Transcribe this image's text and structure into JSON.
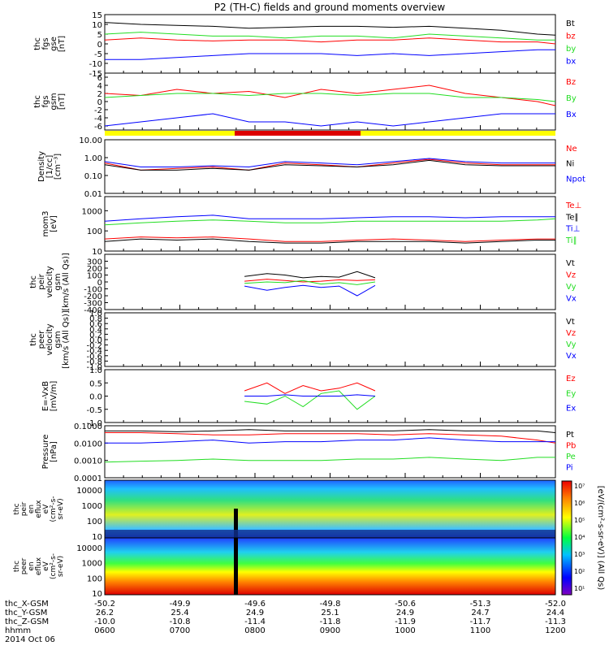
{
  "title": "P2 (TH-C) fields and ground moments overview",
  "colors": {
    "black": "#000000",
    "red": "#ff0000",
    "green": "#22dd22",
    "blue": "#0000ff",
    "bar_yellow": "#ffff00",
    "bar_red": "#dd0000"
  },
  "chart_data": [
    {
      "type": "line",
      "id": "fgs_gse",
      "ylabel": [
        "thc",
        "fgs",
        "gse",
        "[nT]"
      ],
      "ylim": [
        -15,
        15
      ],
      "yticks": [
        "15",
        "10",
        "5",
        "0",
        "-5",
        "-10",
        "-15"
      ],
      "series": [
        {
          "name": "Bt",
          "color": "black",
          "x": [
            0,
            0.08,
            0.16,
            0.24,
            0.32,
            0.4,
            0.48,
            0.56,
            0.64,
            0.72,
            0.8,
            0.88,
            0.96,
            1
          ],
          "y": [
            11,
            10,
            9.5,
            9,
            8,
            8.5,
            9,
            9,
            8.5,
            9,
            8,
            7,
            5,
            4.5
          ]
        },
        {
          "name": "bz",
          "color": "red",
          "x": [
            0,
            0.08,
            0.16,
            0.24,
            0.32,
            0.4,
            0.48,
            0.56,
            0.64,
            0.72,
            0.8,
            0.88,
            0.96,
            1
          ],
          "y": [
            2,
            3,
            2,
            1.5,
            2,
            2,
            1,
            2,
            2,
            3,
            2,
            1,
            1,
            0
          ]
        },
        {
          "name": "by",
          "color": "green",
          "x": [
            0,
            0.08,
            0.16,
            0.24,
            0.32,
            0.4,
            0.48,
            0.56,
            0.64,
            0.72,
            0.8,
            0.88,
            0.96,
            1
          ],
          "y": [
            5,
            6,
            5,
            4,
            4,
            3,
            4,
            4,
            3,
            5,
            4,
            3,
            2,
            2
          ]
        },
        {
          "name": "bx",
          "color": "blue",
          "x": [
            0,
            0.08,
            0.16,
            0.24,
            0.32,
            0.4,
            0.48,
            0.56,
            0.64,
            0.72,
            0.8,
            0.88,
            0.96,
            1
          ],
          "y": [
            -8,
            -8,
            -7,
            -6,
            -5,
            -5,
            -5,
            -6,
            -5,
            -6,
            -5,
            -4,
            -3,
            -3
          ]
        }
      ]
    },
    {
      "type": "line",
      "id": "fgs_gsm",
      "ylabel": [
        "thc",
        "fgs",
        "gsm",
        "[nT]"
      ],
      "ylim": [
        -7,
        7
      ],
      "yticks": [
        "6",
        "4",
        "2",
        "0",
        "-2",
        "-4",
        "-6"
      ],
      "series": [
        {
          "name": "Bz",
          "color": "red",
          "x": [
            0,
            0.08,
            0.16,
            0.24,
            0.32,
            0.4,
            0.48,
            0.56,
            0.64,
            0.72,
            0.8,
            0.88,
            0.96,
            1
          ],
          "y": [
            2,
            1.5,
            3,
            2,
            2.5,
            1,
            3,
            2,
            3,
            4,
            2,
            1,
            0,
            -1
          ]
        },
        {
          "name": "By",
          "color": "green",
          "x": [
            0,
            0.08,
            0.16,
            0.24,
            0.32,
            0.4,
            0.48,
            0.56,
            0.64,
            0.72,
            0.8,
            0.88,
            0.96,
            1
          ],
          "y": [
            1,
            1.5,
            2,
            2,
            1.5,
            2,
            2,
            1.5,
            2,
            2,
            1,
            1,
            0.5,
            0
          ]
        },
        {
          "name": "Bx",
          "color": "blue",
          "x": [
            0,
            0.08,
            0.16,
            0.24,
            0.32,
            0.4,
            0.48,
            0.56,
            0.64,
            0.72,
            0.8,
            0.88,
            0.96,
            1
          ],
          "y": [
            -6,
            -5,
            -4,
            -3,
            -5,
            -5,
            -6,
            -5,
            -6,
            -5,
            -4,
            -3,
            -3,
            -3
          ]
        }
      ]
    },
    {
      "type": "line",
      "id": "density",
      "log": true,
      "ylabel": [
        "Density",
        "[1/cc]",
        "[cm⁻³]"
      ],
      "ylim": [
        0.01,
        10
      ],
      "yticks": [
        "10.00",
        "1.00",
        "0.10",
        "0.01"
      ],
      "series": [
        {
          "name": "Ne",
          "color": "red",
          "x": [
            0,
            0.08,
            0.16,
            0.24,
            0.32,
            0.4,
            0.48,
            0.56,
            0.64,
            0.72,
            0.8,
            0.88,
            0.96,
            1
          ],
          "y": [
            0.5,
            0.2,
            0.25,
            0.3,
            0.2,
            0.5,
            0.4,
            0.3,
            0.5,
            0.8,
            0.5,
            0.4,
            0.4,
            0.4
          ]
        },
        {
          "name": "Ni",
          "color": "black",
          "x": [
            0,
            0.08,
            0.16,
            0.24,
            0.32,
            0.4,
            0.48,
            0.56,
            0.64,
            0.72,
            0.8,
            0.88,
            0.96,
            1
          ],
          "y": [
            0.4,
            0.2,
            0.2,
            0.25,
            0.2,
            0.4,
            0.35,
            0.3,
            0.4,
            0.7,
            0.4,
            0.35,
            0.35,
            0.35
          ]
        },
        {
          "name": "Npot",
          "color": "blue",
          "x": [
            0,
            0.08,
            0.16,
            0.24,
            0.32,
            0.4,
            0.48,
            0.56,
            0.64,
            0.72,
            0.8,
            0.88,
            0.96,
            1
          ],
          "y": [
            0.6,
            0.3,
            0.3,
            0.35,
            0.3,
            0.6,
            0.5,
            0.4,
            0.6,
            0.9,
            0.6,
            0.5,
            0.5,
            0.5
          ]
        }
      ]
    },
    {
      "type": "line",
      "id": "temperature",
      "log": true,
      "ylabel": [
        "mom3",
        "[eV]"
      ],
      "ylim": [
        10,
        5000
      ],
      "yticks": [
        "1000",
        "100",
        "10"
      ],
      "series": [
        {
          "name": "Te⊥",
          "color": "red",
          "x": [
            0,
            0.08,
            0.16,
            0.24,
            0.32,
            0.4,
            0.48,
            0.56,
            0.64,
            0.72,
            0.8,
            0.88,
            0.96,
            1
          ],
          "y": [
            40,
            50,
            45,
            50,
            40,
            30,
            30,
            35,
            40,
            35,
            30,
            35,
            40,
            40
          ]
        },
        {
          "name": "Te∥",
          "color": "black",
          "x": [
            0,
            0.08,
            0.16,
            0.24,
            0.32,
            0.4,
            0.48,
            0.56,
            0.64,
            0.72,
            0.8,
            0.88,
            0.96,
            1
          ],
          "y": [
            30,
            40,
            35,
            40,
            30,
            25,
            25,
            30,
            30,
            30,
            25,
            30,
            35,
            35
          ]
        },
        {
          "name": "Ti⊥",
          "color": "blue",
          "x": [
            0,
            0.08,
            0.16,
            0.24,
            0.32,
            0.4,
            0.48,
            0.56,
            0.64,
            0.72,
            0.8,
            0.88,
            0.96,
            1
          ],
          "y": [
            300,
            400,
            500,
            600,
            400,
            400,
            400,
            450,
            500,
            500,
            450,
            500,
            500,
            500
          ]
        },
        {
          "name": "Ti∥",
          "color": "green",
          "x": [
            0,
            0.08,
            0.16,
            0.24,
            0.32,
            0.4,
            0.48,
            0.56,
            0.64,
            0.72,
            0.8,
            0.88,
            0.96,
            1
          ],
          "y": [
            200,
            250,
            300,
            350,
            300,
            250,
            250,
            300,
            300,
            300,
            300,
            300,
            350,
            400
          ]
        }
      ]
    },
    {
      "type": "line",
      "id": "peir_velocity",
      "ylabel": [
        "thc",
        "peir",
        "velocity",
        "gsm",
        "[km/s (All Qs)]"
      ],
      "ylim": [
        -400,
        400
      ],
      "yticks": [
        "300",
        "200",
        "100",
        "0",
        "-100",
        "-200",
        "-300",
        "-400"
      ],
      "series": [
        {
          "name": "Vt",
          "color": "black",
          "x": [
            0.31,
            0.36,
            0.4,
            0.44,
            0.48,
            0.52,
            0.56,
            0.6
          ],
          "y": [
            80,
            120,
            100,
            60,
            80,
            70,
            150,
            60
          ]
        },
        {
          "name": "Vz",
          "color": "red",
          "x": [
            0.31,
            0.36,
            0.4,
            0.44,
            0.48,
            0.52,
            0.56,
            0.6
          ],
          "y": [
            10,
            40,
            20,
            0,
            10,
            30,
            20,
            30
          ]
        },
        {
          "name": "Vy",
          "color": "green",
          "x": [
            0.31,
            0.36,
            0.4,
            0.44,
            0.48,
            0.52,
            0.56,
            0.6
          ],
          "y": [
            -20,
            0,
            -10,
            20,
            -30,
            -10,
            -40,
            0
          ]
        },
        {
          "name": "Vx",
          "color": "blue",
          "x": [
            0.31,
            0.36,
            0.4,
            0.44,
            0.48,
            0.52,
            0.56,
            0.6
          ],
          "y": [
            -60,
            -120,
            -80,
            -50,
            -80,
            -60,
            -200,
            -50
          ]
        }
      ]
    },
    {
      "type": "line",
      "id": "peer_velocity",
      "ylabel": [
        "thc",
        "peer",
        "velocity",
        "gsm",
        "[km/s (All Qs)]"
      ],
      "ylim": [
        -1,
        1
      ],
      "yticks": [
        "1.0",
        "0.8",
        "0.6",
        "0.4",
        "0.2",
        "0.0",
        "-0.2",
        "-0.4",
        "-0.6",
        "-0.8",
        "-1.0"
      ],
      "series": [
        {
          "name": "Vt",
          "color": "black",
          "x": [],
          "y": []
        },
        {
          "name": "Vz",
          "color": "red",
          "x": [],
          "y": []
        },
        {
          "name": "Vy",
          "color": "green",
          "x": [],
          "y": []
        },
        {
          "name": "Vx",
          "color": "blue",
          "x": [],
          "y": []
        }
      ]
    },
    {
      "type": "line",
      "id": "efield",
      "ylabel": [
        "E=-VxB",
        "[mV/m]"
      ],
      "ylim": [
        -1,
        1
      ],
      "yticks": [
        "1.0",
        "0.5",
        "0.0",
        "-0.5",
        "-1.0"
      ],
      "series": [
        {
          "name": "Ez",
          "color": "red",
          "x": [
            0.31,
            0.36,
            0.4,
            0.44,
            0.48,
            0.52,
            0.56,
            0.6
          ],
          "y": [
            0.2,
            0.5,
            0.1,
            0.4,
            0.2,
            0.3,
            0.5,
            0.2
          ]
        },
        {
          "name": "Ey",
          "color": "green",
          "x": [
            0.31,
            0.36,
            0.4,
            0.44,
            0.48,
            0.52,
            0.56,
            0.6
          ],
          "y": [
            -0.2,
            -0.3,
            0,
            -0.4,
            0.1,
            0.2,
            -0.5,
            0
          ]
        },
        {
          "name": "Ex",
          "color": "blue",
          "x": [
            0.31,
            0.36,
            0.4,
            0.44,
            0.48,
            0.52,
            0.56,
            0.6
          ],
          "y": [
            0,
            0,
            0.05,
            0,
            0,
            0,
            0.05,
            0
          ]
        }
      ]
    },
    {
      "type": "line",
      "id": "pressure",
      "log": true,
      "ylabel": [
        "Pressure",
        "[nPa]"
      ],
      "ylim": [
        0.0001,
        0.1
      ],
      "yticks": [
        "0.1000",
        "0.0100",
        "0.0010",
        "0.0001"
      ],
      "series": [
        {
          "name": "Pt",
          "color": "black",
          "x": [
            0,
            0.08,
            0.16,
            0.24,
            0.32,
            0.4,
            0.48,
            0.56,
            0.64,
            0.72,
            0.8,
            0.88,
            0.96,
            1
          ],
          "y": [
            0.05,
            0.05,
            0.045,
            0.05,
            0.06,
            0.05,
            0.05,
            0.05,
            0.05,
            0.06,
            0.05,
            0.05,
            0.05,
            0.04
          ]
        },
        {
          "name": "Pb",
          "color": "red",
          "x": [
            0,
            0.08,
            0.16,
            0.24,
            0.32,
            0.4,
            0.48,
            0.56,
            0.64,
            0.72,
            0.8,
            0.88,
            0.96,
            1
          ],
          "y": [
            0.04,
            0.04,
            0.035,
            0.03,
            0.03,
            0.035,
            0.035,
            0.035,
            0.03,
            0.035,
            0.03,
            0.025,
            0.015,
            0.01
          ]
        },
        {
          "name": "Pe",
          "color": "green",
          "x": [
            0,
            0.08,
            0.16,
            0.24,
            0.32,
            0.4,
            0.48,
            0.56,
            0.64,
            0.72,
            0.8,
            0.88,
            0.96,
            1
          ],
          "y": [
            0.0008,
            0.0009,
            0.001,
            0.0012,
            0.001,
            0.001,
            0.001,
            0.0012,
            0.0012,
            0.0015,
            0.0012,
            0.001,
            0.0015,
            0.0015
          ]
        },
        {
          "name": "Pi",
          "color": "blue",
          "x": [
            0,
            0.08,
            0.16,
            0.24,
            0.32,
            0.4,
            0.48,
            0.56,
            0.64,
            0.72,
            0.8,
            0.88,
            0.96,
            1
          ],
          "y": [
            0.01,
            0.01,
            0.012,
            0.015,
            0.01,
            0.012,
            0.012,
            0.015,
            0.015,
            0.02,
            0.015,
            0.012,
            0.012,
            0.012
          ]
        }
      ]
    },
    {
      "type": "heatmap",
      "id": "peir_eflux",
      "ylabel": [
        "thc",
        "peir",
        "en",
        "eflux",
        "eV",
        "(cm²-s-",
        "sr-eV)"
      ],
      "yticks": [
        "10000",
        "1000",
        "100",
        "10"
      ]
    },
    {
      "type": "heatmap",
      "id": "peer_eflux",
      "ylabel": [
        "thc",
        "peer",
        "en",
        "eflux",
        "eV",
        "(cm²-s-",
        "sr-eV)"
      ],
      "yticks": [
        "10000",
        "1000",
        "100",
        "10"
      ]
    }
  ],
  "colorbar": {
    "label": "[eV/(cm²-s-sr-eV)] (All Qs)",
    "ticks": [
      "10⁷",
      "10⁶",
      "10⁵",
      "10⁴",
      "10³",
      "10²",
      "10¹"
    ]
  },
  "ephemeris": {
    "rows": [
      {
        "label": "thc_X-GSM",
        "values": [
          "-50.2",
          "-49.9",
          "-49.6",
          "-49.8",
          "-50.6",
          "-51.3",
          "-52.0"
        ]
      },
      {
        "label": "thc_Y-GSM",
        "values": [
          "26.2",
          "25.4",
          "24.9",
          "25.1",
          "24.9",
          "24.7",
          "24.4"
        ]
      },
      {
        "label": "thc_Z-GSM",
        "values": [
          "-10.0",
          "-10.8",
          "-11.4",
          "-11.8",
          "-11.9",
          "-11.7",
          "-11.3"
        ]
      },
      {
        "label": "hhmm",
        "values": [
          "0600",
          "0700",
          "0800",
          "0900",
          "1000",
          "1100",
          "1200"
        ]
      }
    ],
    "date": "2014 Oct 06"
  }
}
